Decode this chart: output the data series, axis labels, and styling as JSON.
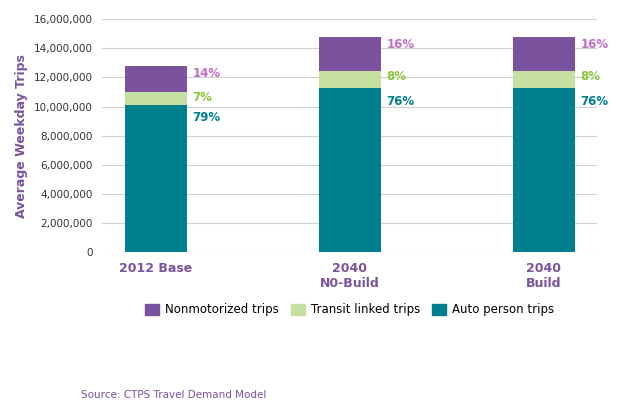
{
  "categories": [
    "2012 Base",
    "2040\nN0-Build",
    "2040\nBuild"
  ],
  "auto_values": [
    10112000,
    11248000,
    11248000
  ],
  "transit_values": [
    896000,
    1184000,
    1184000
  ],
  "nonmoto_values": [
    1792000,
    2368000,
    2368000
  ],
  "auto_pcts": [
    "79%",
    "76%",
    "76%"
  ],
  "transit_pcts": [
    "7%",
    "8%",
    "8%"
  ],
  "nonmoto_pcts": [
    "14%",
    "16%",
    "16%"
  ],
  "auto_color": "#007f8c",
  "transit_color": "#c5e0a0",
  "nonmoto_color": "#7b529e",
  "auto_label_color": "#007f8c",
  "transit_label_color": "#8dc63f",
  "nonmoto_label_color": "#c06fc5",
  "ylabel": "Average Weekday Trips",
  "ylabel_color": "#7b529e",
  "xlabel_color": "#7b529e",
  "ylim": [
    0,
    16000000
  ],
  "yticks": [
    0,
    2000000,
    4000000,
    6000000,
    8000000,
    10000000,
    12000000,
    14000000,
    16000000
  ],
  "legend_labels": [
    "Nonmotorized trips",
    "Transit linked trips",
    "Auto person trips"
  ],
  "source_text": "Source: CTPS Travel Demand Model",
  "source_color": "#7b529e",
  "bar_width": 0.32,
  "background_color": "#ffffff",
  "grid_color": "#d0d0d0"
}
